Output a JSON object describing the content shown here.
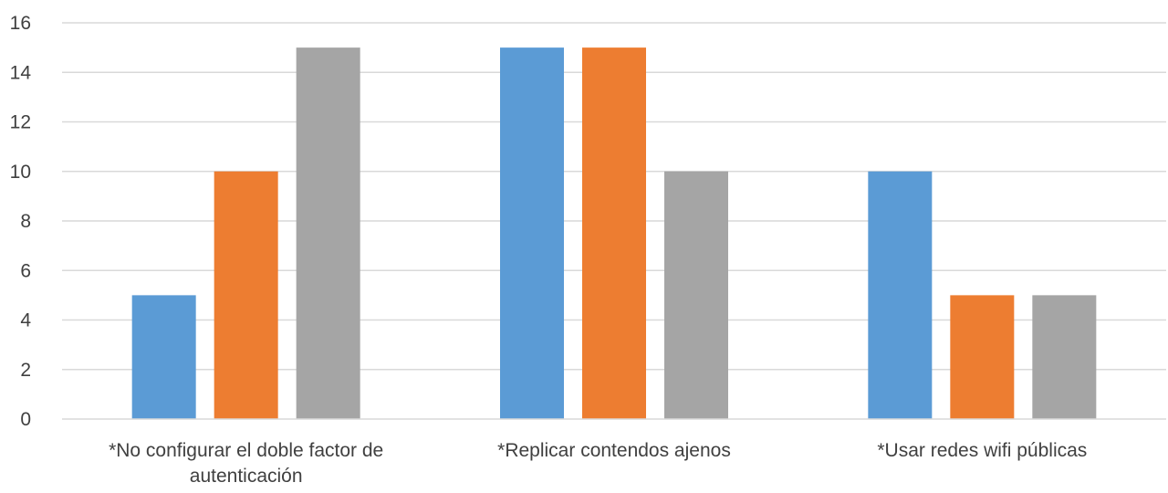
{
  "chart_data": {
    "type": "bar",
    "title": "",
    "xlabel": "",
    "ylabel": "",
    "ylim": [
      0,
      16
    ],
    "yticks": [
      0,
      2,
      4,
      6,
      8,
      10,
      12,
      14,
      16
    ],
    "ytick_labels": [
      "0",
      "2",
      "4",
      "6",
      "8",
      "10",
      "12",
      "14",
      "16"
    ],
    "grid": true,
    "legend": "none",
    "categories": [
      "*No configurar el doble factor de autenticación",
      "*Replicar contendos ajenos",
      "*Usar redes wifi públicas"
    ],
    "series": [
      {
        "color": "#5b9bd5",
        "values": [
          5,
          15,
          10
        ]
      },
      {
        "color": "#ed7d31",
        "values": [
          10,
          15,
          5
        ]
      },
      {
        "color": "#a5a5a5",
        "values": [
          15,
          10,
          5
        ]
      }
    ]
  }
}
